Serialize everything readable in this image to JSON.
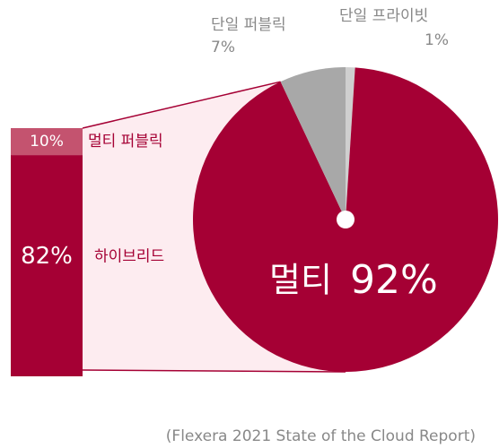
{
  "chart_data": {
    "type": "bar-of-pie",
    "pie": {
      "categories": [
        "단일 프라이빗",
        "멀티",
        "단일 퍼블릭"
      ],
      "values": [
        1,
        92,
        7
      ],
      "value_labels": [
        "1%",
        "92%",
        "7%"
      ],
      "colors": [
        "#cfcfcf",
        "#a50034",
        "#a8a8a8"
      ]
    },
    "bar": {
      "categories": [
        "멀티 퍼블릭",
        "하이브리드"
      ],
      "values": [
        10,
        82
      ],
      "value_labels": [
        "10%",
        "82%"
      ],
      "colors": [
        "#c4536f",
        "#a50034"
      ]
    },
    "source": "(Flexera 2021 State of the Cloud Report)"
  }
}
